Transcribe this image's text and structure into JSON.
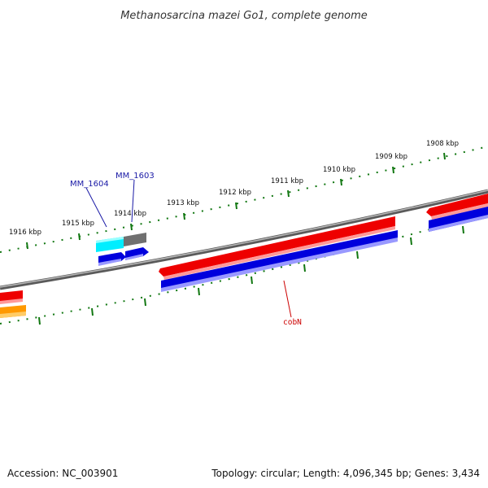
{
  "title": "Methanosarcina mazei Go1, complete genome",
  "footer": {
    "accession": "Accession: NC_003901",
    "info": "Topology: circular; Length: 4,096,345 bp; Genes: 3,434"
  },
  "ticks": [
    "1908 kbp",
    "1909 kbp",
    "1910 kbp",
    "1911 kbp",
    "1912 kbp",
    "1913 kbp",
    "1914 kbp",
    "1915 kbp",
    "1916 kbp"
  ],
  "gene_labels": {
    "mm1604": "MM_1604",
    "mm1603": "MM_1603",
    "cobN": "cobN"
  },
  "colors": {
    "forward": "#ee0000",
    "reverse": "#0000dd",
    "cyan": "#00eeff",
    "gray": "#707070",
    "orange": "#ff9900",
    "tick": "#117711",
    "backbone": "#888888"
  }
}
